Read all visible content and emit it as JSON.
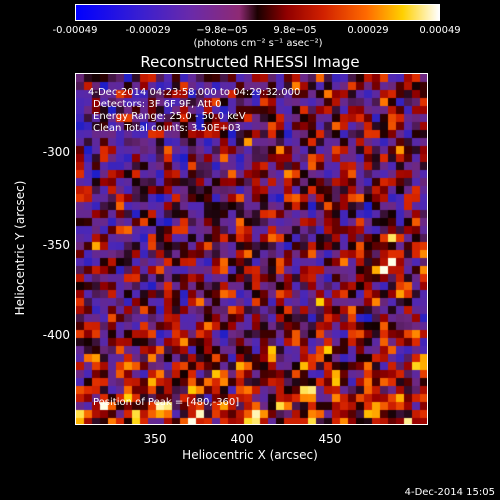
{
  "colorbar": {
    "ticks": [
      "-0.00049",
      "-0.00029",
      "−9.8e−05",
      "9.8e−05",
      "0.00029",
      "0.00049"
    ],
    "unit": "(photons cm⁻² s⁻¹ asec⁻²)"
  },
  "title": "Reconstructed RHESSI Image",
  "annotations": {
    "time": "4-Dec-2014 04:23:58.000 to 04:29:32.000",
    "detectors": "Detectors: 3F 6F 9F, Att 0",
    "energy": "Energy Range: 25.0 - 50.0 keV",
    "clean": "Clean     Total counts: 3.50E+03",
    "peak": "Position of Peak = [480,-360]"
  },
  "axes": {
    "xlabel": "Heliocentric X (arcsec)",
    "ylabel": "Heliocentric Y (arcsec)",
    "xticks": [
      "350",
      "400",
      "450"
    ],
    "yticks": [
      "-300",
      "-350",
      "-400"
    ]
  },
  "timestamp": "4-Dec-2014 15:05"
}
